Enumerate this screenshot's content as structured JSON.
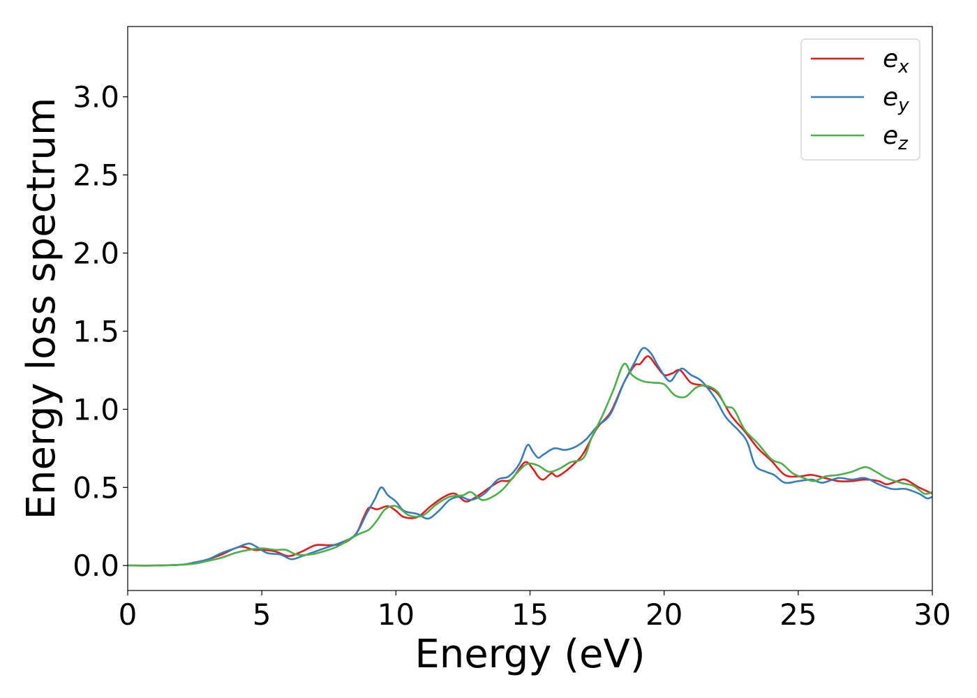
{
  "chart_data": {
    "type": "line",
    "title": "",
    "xlabel": "Energy (eV)",
    "ylabel": "Energy loss spectrum",
    "xlim": [
      0,
      30
    ],
    "ylim": [
      -0.16,
      3.45
    ],
    "xticks": [
      0,
      5,
      10,
      15,
      20,
      25,
      30
    ],
    "yticks": [
      0.0,
      0.5,
      1.0,
      1.5,
      2.0,
      2.5,
      3.0
    ],
    "xtick_labels": [
      "0",
      "5",
      "10",
      "15",
      "20",
      "25",
      "30"
    ],
    "ytick_labels": [
      "0.0",
      "0.5",
      "1.0",
      "1.5",
      "2.0",
      "2.5",
      "3.0"
    ],
    "grid": false,
    "legend_position": "top-right",
    "series": [
      {
        "name": "e",
        "subscript": "x",
        "color": "#e41a1c",
        "points": [
          [
            0,
            0
          ],
          [
            1,
            0
          ],
          [
            2,
            0.005
          ],
          [
            2.5,
            0.015
          ],
          [
            3,
            0.04
          ],
          [
            3.5,
            0.07
          ],
          [
            4,
            0.11
          ],
          [
            4.3,
            0.12
          ],
          [
            4.7,
            0.1
          ],
          [
            5,
            0.1
          ],
          [
            5.5,
            0.09
          ],
          [
            6,
            0.06
          ],
          [
            6.5,
            0.09
          ],
          [
            7,
            0.13
          ],
          [
            7.5,
            0.13
          ],
          [
            8,
            0.14
          ],
          [
            8.5,
            0.2
          ],
          [
            8.8,
            0.31
          ],
          [
            9,
            0.37
          ],
          [
            9.3,
            0.36
          ],
          [
            9.7,
            0.38
          ],
          [
            10,
            0.35
          ],
          [
            10.3,
            0.31
          ],
          [
            10.8,
            0.31
          ],
          [
            11.3,
            0.38
          ],
          [
            11.8,
            0.44
          ],
          [
            12.2,
            0.46
          ],
          [
            12.6,
            0.41
          ],
          [
            13,
            0.44
          ],
          [
            13.5,
            0.5
          ],
          [
            13.9,
            0.54
          ],
          [
            14.3,
            0.55
          ],
          [
            14.8,
            0.66
          ],
          [
            15.1,
            0.62
          ],
          [
            15.3,
            0.57
          ],
          [
            15.5,
            0.55
          ],
          [
            15.8,
            0.59
          ],
          [
            16,
            0.57
          ],
          [
            16.3,
            0.6
          ],
          [
            16.7,
            0.66
          ],
          [
            17,
            0.72
          ],
          [
            17.5,
            0.88
          ],
          [
            18,
            0.98
          ],
          [
            18.5,
            1.17
          ],
          [
            18.9,
            1.28
          ],
          [
            19.1,
            1.29
          ],
          [
            19.4,
            1.34
          ],
          [
            19.7,
            1.28
          ],
          [
            20,
            1.22
          ],
          [
            20.3,
            1.23
          ],
          [
            20.6,
            1.25
          ],
          [
            21,
            1.17
          ],
          [
            21.5,
            1.15
          ],
          [
            22,
            1.1
          ],
          [
            22.5,
            0.96
          ],
          [
            23,
            0.86
          ],
          [
            23.5,
            0.75
          ],
          [
            24,
            0.67
          ],
          [
            24.5,
            0.58
          ],
          [
            25,
            0.57
          ],
          [
            25.5,
            0.58
          ],
          [
            26,
            0.56
          ],
          [
            26.5,
            0.54
          ],
          [
            27,
            0.54
          ],
          [
            27.5,
            0.55
          ],
          [
            28,
            0.54
          ],
          [
            28.3,
            0.52
          ],
          [
            28.7,
            0.54
          ],
          [
            29,
            0.55
          ],
          [
            29.5,
            0.5
          ],
          [
            30,
            0.46
          ]
        ]
      },
      {
        "name": "e",
        "subscript": "y",
        "color": "#377eb8",
        "points": [
          [
            0,
            0
          ],
          [
            1,
            0
          ],
          [
            2,
            0.005
          ],
          [
            2.5,
            0.02
          ],
          [
            3,
            0.04
          ],
          [
            3.5,
            0.08
          ],
          [
            4,
            0.11
          ],
          [
            4.5,
            0.14
          ],
          [
            4.8,
            0.12
          ],
          [
            5.2,
            0.08
          ],
          [
            5.7,
            0.07
          ],
          [
            6.1,
            0.04
          ],
          [
            6.5,
            0.06
          ],
          [
            7,
            0.09
          ],
          [
            7.5,
            0.12
          ],
          [
            8,
            0.15
          ],
          [
            8.5,
            0.2
          ],
          [
            8.9,
            0.33
          ],
          [
            9.2,
            0.42
          ],
          [
            9.45,
            0.5
          ],
          [
            9.7,
            0.45
          ],
          [
            10,
            0.41
          ],
          [
            10.3,
            0.35
          ],
          [
            10.8,
            0.33
          ],
          [
            11.2,
            0.3
          ],
          [
            11.6,
            0.35
          ],
          [
            12,
            0.42
          ],
          [
            12.4,
            0.44
          ],
          [
            12.8,
            0.42
          ],
          [
            13.3,
            0.46
          ],
          [
            13.8,
            0.55
          ],
          [
            14.2,
            0.57
          ],
          [
            14.6,
            0.65
          ],
          [
            14.9,
            0.77
          ],
          [
            15.1,
            0.73
          ],
          [
            15.3,
            0.69
          ],
          [
            15.5,
            0.71
          ],
          [
            15.9,
            0.75
          ],
          [
            16.3,
            0.74
          ],
          [
            16.7,
            0.76
          ],
          [
            17.1,
            0.81
          ],
          [
            17.5,
            0.89
          ],
          [
            18,
            0.97
          ],
          [
            18.5,
            1.17
          ],
          [
            18.9,
            1.3
          ],
          [
            19.2,
            1.39
          ],
          [
            19.5,
            1.36
          ],
          [
            19.8,
            1.27
          ],
          [
            20.2,
            1.18
          ],
          [
            20.5,
            1.24
          ],
          [
            20.7,
            1.26
          ],
          [
            21,
            1.22
          ],
          [
            21.4,
            1.18
          ],
          [
            21.9,
            1.07
          ],
          [
            22.3,
            0.95
          ],
          [
            22.8,
            0.86
          ],
          [
            23.1,
            0.79
          ],
          [
            23.4,
            0.64
          ],
          [
            23.8,
            0.6
          ],
          [
            24.1,
            0.58
          ],
          [
            24.5,
            0.53
          ],
          [
            25,
            0.54
          ],
          [
            25.5,
            0.55
          ],
          [
            25.9,
            0.53
          ],
          [
            26.5,
            0.56
          ],
          [
            27,
            0.55
          ],
          [
            27.5,
            0.56
          ],
          [
            28,
            0.52
          ],
          [
            28.5,
            0.49
          ],
          [
            29,
            0.49
          ],
          [
            29.5,
            0.46
          ],
          [
            29.8,
            0.43
          ],
          [
            30,
            0.44
          ]
        ]
      },
      {
        "name": "e",
        "subscript": "z",
        "color": "#4daf4a",
        "points": [
          [
            0,
            0
          ],
          [
            1,
            0
          ],
          [
            2,
            0.005
          ],
          [
            2.5,
            0.012
          ],
          [
            3,
            0.03
          ],
          [
            3.5,
            0.05
          ],
          [
            4,
            0.08
          ],
          [
            4.5,
            0.1
          ],
          [
            5,
            0.11
          ],
          [
            5.5,
            0.1
          ],
          [
            5.9,
            0.1
          ],
          [
            6.3,
            0.07
          ],
          [
            6.8,
            0.07
          ],
          [
            7.3,
            0.09
          ],
          [
            7.8,
            0.12
          ],
          [
            8.2,
            0.16
          ],
          [
            8.6,
            0.2
          ],
          [
            9,
            0.23
          ],
          [
            9.3,
            0.29
          ],
          [
            9.6,
            0.36
          ],
          [
            10,
            0.38
          ],
          [
            10.5,
            0.32
          ],
          [
            11,
            0.32
          ],
          [
            11.5,
            0.39
          ],
          [
            12,
            0.44
          ],
          [
            12.5,
            0.45
          ],
          [
            12.8,
            0.47
          ],
          [
            13.2,
            0.42
          ],
          [
            13.6,
            0.44
          ],
          [
            14,
            0.49
          ],
          [
            14.5,
            0.59
          ],
          [
            14.9,
            0.65
          ],
          [
            15.3,
            0.64
          ],
          [
            15.7,
            0.6
          ],
          [
            16.1,
            0.62
          ],
          [
            16.5,
            0.66
          ],
          [
            17,
            0.69
          ],
          [
            17.3,
            0.82
          ],
          [
            17.7,
            0.96
          ],
          [
            18.1,
            1.12
          ],
          [
            18.5,
            1.29
          ],
          [
            18.8,
            1.22
          ],
          [
            19.2,
            1.18
          ],
          [
            19.6,
            1.17
          ],
          [
            20,
            1.16
          ],
          [
            20.4,
            1.09
          ],
          [
            20.8,
            1.08
          ],
          [
            21.2,
            1.14
          ],
          [
            21.6,
            1.15
          ],
          [
            22,
            1.11
          ],
          [
            22.3,
            1.02
          ],
          [
            22.6,
            1.0
          ],
          [
            23,
            0.87
          ],
          [
            23.5,
            0.78
          ],
          [
            24,
            0.68
          ],
          [
            24.4,
            0.65
          ],
          [
            24.8,
            0.59
          ],
          [
            25.2,
            0.56
          ],
          [
            25.6,
            0.54
          ],
          [
            26,
            0.57
          ],
          [
            26.5,
            0.58
          ],
          [
            27,
            0.6
          ],
          [
            27.5,
            0.63
          ],
          [
            27.9,
            0.6
          ],
          [
            28.3,
            0.56
          ],
          [
            28.8,
            0.53
          ],
          [
            29.3,
            0.51
          ],
          [
            29.7,
            0.46
          ],
          [
            30,
            0.47
          ]
        ]
      }
    ]
  }
}
